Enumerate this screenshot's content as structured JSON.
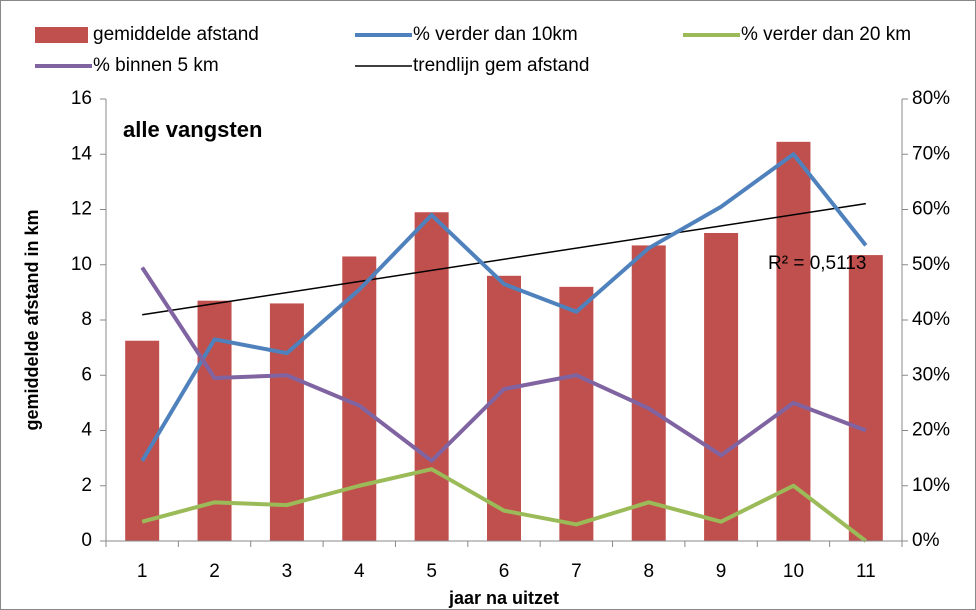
{
  "chart_data": {
    "type": "bar-line",
    "title": "alle vangsten",
    "x_label": "jaar na uitzet",
    "y_label": "gemiddelde afstand in km",
    "categories": [
      "1",
      "2",
      "3",
      "4",
      "5",
      "6",
      "7",
      "8",
      "9",
      "10",
      "11"
    ],
    "series": [
      {
        "name": "gemiddelde afstand",
        "type": "bar",
        "color": "#c0504d",
        "values": [
          7.25,
          8.7,
          8.6,
          10.3,
          11.9,
          9.6,
          9.2,
          10.7,
          11.15,
          14.45,
          10.35
        ]
      },
      {
        "name": "% verder dan 10km",
        "type": "line",
        "axis": "y2",
        "color": "#4f81bd",
        "values": [
          14.5,
          36.5,
          34,
          45.5,
          59,
          46.5,
          41.5,
          53,
          60.5,
          70,
          53.5
        ]
      },
      {
        "name": "% verder dan 20 km",
        "type": "line",
        "axis": "y2",
        "color": "#9bbb59",
        "values": [
          3.5,
          7,
          6.5,
          10,
          13,
          5.5,
          3,
          7,
          3.5,
          10,
          0
        ]
      },
      {
        "name": "% binnen 5 km",
        "type": "line",
        "axis": "y2",
        "color": "#8064a2",
        "values": [
          49.5,
          29.5,
          30,
          24.5,
          14.5,
          27.5,
          30,
          24,
          15.5,
          25,
          20
        ]
      }
    ],
    "trendline": {
      "name": "trendlijn gem afstand",
      "color": "#000000",
      "annotation": "R² = 0,5113"
    },
    "ylim": [
      0,
      16
    ],
    "yticks": [
      0,
      2,
      4,
      6,
      8,
      10,
      12,
      14,
      16
    ],
    "y2lim": [
      0,
      80
    ],
    "y2ticks": [
      {
        "value": 0,
        "label": "0%"
      },
      {
        "value": 10,
        "label": "10%"
      },
      {
        "value": 20,
        "label": "20%"
      },
      {
        "value": 30,
        "label": "30%"
      },
      {
        "value": 40,
        "label": "40%"
      },
      {
        "value": 50,
        "label": "50%"
      },
      {
        "value": 60,
        "label": "60%"
      },
      {
        "value": 70,
        "label": "70%"
      },
      {
        "value": 80,
        "label": "80%"
      }
    ],
    "legend": "top",
    "grid": false
  }
}
